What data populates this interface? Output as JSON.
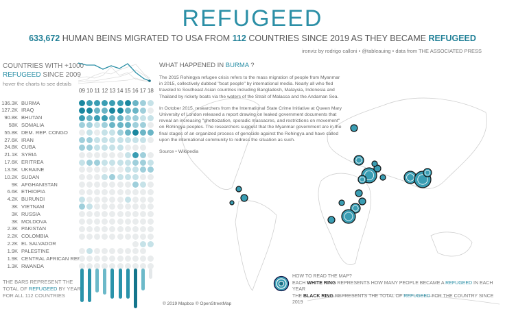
{
  "title": "REFUGEED",
  "subtitle": {
    "total": "633,672",
    "part1": " HUMAN BEINS MIGRATED TO USA FROM ",
    "countries": "112",
    "part2": " COUNTRIES SINCE 2019 AS THEY BECAME ",
    "word": "REFUGEED"
  },
  "credits": "ironviz by rodrigo calloni • @tableauing • data from THE ASSOCIATED PRESS",
  "left": {
    "heading1": "COUNTRIES WITH +1000",
    "heading2a": "REFUGEED",
    "heading2b": " SINCE 2009",
    "hint": "hover the charts to see details",
    "years": [
      "09",
      "10",
      "11",
      "12",
      "13",
      "14",
      "15",
      "16",
      "17",
      "18"
    ],
    "rows": [
      {
        "value": "136.3K",
        "name": "BURMA",
        "levels": [
          5,
          4,
          4,
          4,
          4,
          4,
          5,
          3,
          2,
          1
        ]
      },
      {
        "value": "127.2K",
        "name": "IRAQ",
        "levels": [
          5,
          5,
          3,
          3,
          5,
          5,
          3,
          3,
          2,
          0
        ]
      },
      {
        "value": "90.8K",
        "name": "BHUTAN",
        "levels": [
          4,
          3,
          4,
          4,
          3,
          3,
          2,
          2,
          1,
          1
        ]
      },
      {
        "value": "58K",
        "name": "SOMALIA",
        "levels": [
          2,
          2,
          1,
          2,
          3,
          3,
          3,
          2,
          2,
          0
        ]
      },
      {
        "value": "55.8K",
        "name": "DEM. REP. CONGO",
        "levels": [
          0,
          1,
          0,
          1,
          1,
          2,
          3,
          5,
          3,
          3
        ]
      },
      {
        "value": "27.6K",
        "name": "IRAN",
        "levels": [
          2,
          2,
          1,
          1,
          1,
          1,
          1,
          1,
          1,
          0
        ]
      },
      {
        "value": "24.8K",
        "name": "CUBA",
        "levels": [
          2,
          2,
          1,
          1,
          1,
          1,
          0,
          0,
          0,
          null
        ]
      },
      {
        "value": "21.1K",
        "name": "SYRIA",
        "levels": [
          0,
          0,
          0,
          0,
          0,
          0,
          1,
          4,
          2,
          0
        ]
      },
      {
        "value": "17.6K",
        "name": "ERITREA",
        "levels": [
          1,
          2,
          2,
          1,
          1,
          1,
          1,
          2,
          2,
          1
        ]
      },
      {
        "value": "13.5K",
        "name": "UKRAINE",
        "levels": [
          0,
          0,
          0,
          0,
          0,
          0,
          1,
          1,
          2,
          2
        ]
      },
      {
        "value": "10.2K",
        "name": "SUDAN",
        "levels": [
          0,
          0,
          0,
          1,
          2,
          1,
          1,
          1,
          0,
          0
        ]
      },
      {
        "value": "9K",
        "name": "AFGHANISTAN",
        "levels": [
          0,
          0,
          0,
          0,
          0,
          0,
          0,
          2,
          1,
          0
        ]
      },
      {
        "value": "6.6K",
        "name": "ETHIOPIA",
        "levels": [
          0,
          0,
          0,
          0,
          0,
          0,
          0,
          0,
          0,
          0
        ]
      },
      {
        "value": "4.2K",
        "name": "BURUNDI",
        "levels": [
          1,
          0,
          0,
          0,
          0,
          0,
          1,
          0,
          0,
          0
        ]
      },
      {
        "value": "3K",
        "name": "VIETNAM",
        "levels": [
          2,
          1,
          0,
          0,
          0,
          0,
          0,
          0,
          0,
          0
        ]
      },
      {
        "value": "3K",
        "name": "RUSSIA",
        "levels": [
          0,
          0,
          0,
          0,
          0,
          0,
          0,
          0,
          0,
          0
        ]
      },
      {
        "value": "3K",
        "name": "MOLDOVA",
        "levels": [
          0,
          0,
          0,
          0,
          0,
          0,
          0,
          0,
          0,
          0
        ]
      },
      {
        "value": "2.3K",
        "name": "PAKISTAN",
        "levels": [
          0,
          0,
          0,
          0,
          0,
          0,
          0,
          0,
          0,
          0
        ]
      },
      {
        "value": "2.2K",
        "name": "COLOMBIA",
        "levels": [
          0,
          0,
          0,
          0,
          0,
          0,
          0,
          0,
          0,
          0
        ]
      },
      {
        "value": "2.2K",
        "name": "EL SALVADOR",
        "levels": [
          null,
          null,
          null,
          null,
          null,
          null,
          null,
          0,
          1,
          1
        ]
      },
      {
        "value": "1.9K",
        "name": "PALESTINE",
        "levels": [
          0,
          1,
          0,
          0,
          0,
          0,
          0,
          0,
          0,
          null
        ]
      },
      {
        "value": "1.9K",
        "name": "CENTRAL AFRICAN REP",
        "levels": [
          0,
          0,
          0,
          0,
          0,
          0,
          0,
          0,
          0,
          0
        ]
      },
      {
        "value": "1.3K",
        "name": "RWANDA",
        "levels": [
          0,
          0,
          0,
          0,
          0,
          0,
          0,
          0,
          0,
          0
        ]
      }
    ],
    "level_colors": [
      "#e9eced",
      "#c6e2e8",
      "#9fcfdb",
      "#6ab5c6",
      "#3a9db3",
      "#1a879f"
    ],
    "bars_relative": [
      0.85,
      0.85,
      0.6,
      0.65,
      0.76,
      0.76,
      0.76,
      1.0,
      0.55,
      0.25
    ],
    "bar_note1": "THE BARS REPRESENT THE",
    "bar_note2a": "TOTAL OF ",
    "bar_note2b": "REFUGEED",
    "bar_note2c": " BY YEAR",
    "bar_note3": "FOR ALL  112 COUNTRIES"
  },
  "story": {
    "heading_a": "WHAT HAPPENED IN ",
    "heading_country": "BURMA",
    "heading_b": " ?",
    "p1": "The 2015 Rohingya refugee crisis refers to the mass migration of people from Myanmar in 2015, collectively dubbed \"boat people\" by international media. Nearly all who fled traveled to Southeast Asian countries including Bangladesh, Malaysia, Indonesia and Thailand by rickety boats via the waters of the Strait of Malacca and the Andaman Sea.",
    "p2": "In October 2015, researchers from the International State Crime Initiative at Queen Mary University of London released a report drawing on leaked government documents that reveal an increasing \"ghettoization, sporadic massacres, and restrictions on movement\" on Rohingya peoples. The researchers suggest that the Myanmar government are in the final stages of an organized process of genocide against the Rohingya and have called upon the international community to redress the situation as such.",
    "source": "Source • Wikipedia"
  },
  "howto": {
    "line1": "HOW TO READ THE MAP?",
    "l2a": "EACH ",
    "l2b": "WHITE RING",
    "l2c": " REPRESENTS HOW MANY PEOPLE BECAME A ",
    "l2d": "REFUGEED",
    "l2e": " IN EACH YEAR",
    "l3a": "THE ",
    "l3b": "BLACK RING",
    "l3c": " REPRESENTS THE TOTAL OF ",
    "l3d": "REFUGEED",
    "l3e": " FOR THE COUNTRY SINCE 2019"
  },
  "map_copyright": "© 2019 Mapbox © OpenStreetMap",
  "colors": {
    "accent": "#2b8fa6",
    "dark_accent": "#1a879f"
  }
}
